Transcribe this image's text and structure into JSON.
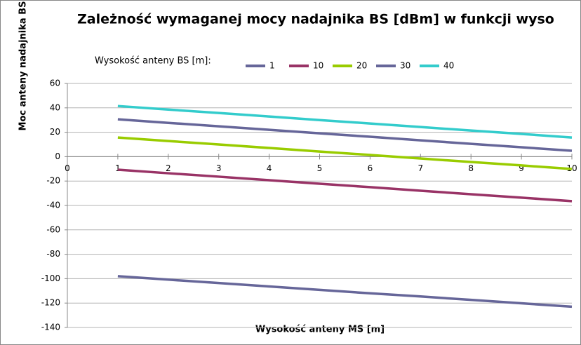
{
  "chart_data": {
    "type": "line",
    "title": "Zależność wymaganej mocy nadajnika BS [dBm] w funkcji wyso",
    "x_label": "Wysokość anteny MS [m]",
    "y_label": "Moc anteny nadajnika BS",
    "legend_title": "Wysokość anteny BS [m]:",
    "x": [
      1,
      2,
      3,
      4,
      5,
      6,
      7,
      8,
      9,
      10
    ],
    "series": [
      {
        "name": "1",
        "color": "#666699",
        "values": [
          -98,
          -100.8,
          -103.6,
          -106.4,
          -109.2,
          -112,
          -114.6,
          -117.4,
          -120.2,
          -123
        ]
      },
      {
        "name": "10",
        "color": "#993366",
        "values": [
          -10.7,
          -13.6,
          -16.4,
          -19.3,
          -22.2,
          -25,
          -27.9,
          -30.8,
          -33.6,
          -36.5
        ]
      },
      {
        "name": "20",
        "color": "#99cc00",
        "values": [
          15.7,
          12.8,
          10,
          7.1,
          4.2,
          1.4,
          -1.5,
          -4.4,
          -7.2,
          -10.1
        ]
      },
      {
        "name": "30",
        "color": "#666699",
        "values": [
          30.6,
          27.7,
          24.9,
          22,
          19.1,
          16.3,
          13.4,
          10.5,
          7.7,
          4.8
        ]
      },
      {
        "name": "40",
        "color": "#33cccc",
        "values": [
          41.5,
          38.6,
          35.8,
          32.9,
          30,
          27.2,
          24.3,
          21.4,
          18.6,
          15.7
        ]
      }
    ],
    "xlim": [
      0,
      10
    ],
    "xticks": [
      0,
      1,
      2,
      3,
      4,
      5,
      6,
      7,
      8,
      9,
      10
    ],
    "ylim": [
      -140,
      60
    ],
    "yticks": [
      -140,
      -120,
      -100,
      -80,
      -60,
      -40,
      -20,
      0,
      20,
      40,
      60
    ],
    "grid": true,
    "legend": "top"
  }
}
